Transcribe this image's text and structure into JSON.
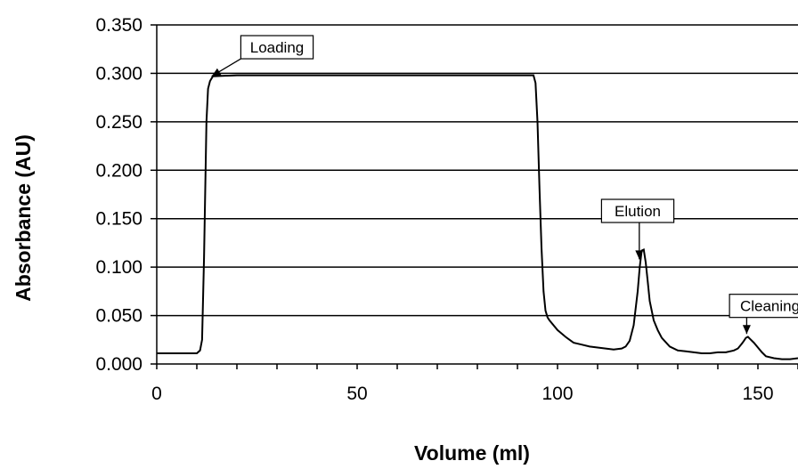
{
  "chart_data": {
    "type": "line",
    "xlabel": "Volume (ml)",
    "ylabel": "Absorbance (AU)",
    "xlim": [
      0,
      160
    ],
    "ylim": [
      0,
      0.35
    ],
    "x_ticks": [
      0,
      50,
      100,
      150
    ],
    "x_tick_labels": [
      "0",
      "50",
      "100",
      "150"
    ],
    "x_minor_step": 10,
    "y_ticks": [
      0,
      0.05,
      0.1,
      0.15,
      0.2,
      0.25,
      0.3,
      0.35
    ],
    "y_tick_labels": [
      "0.000",
      "0.050",
      "0.100",
      "0.150",
      "0.200",
      "0.250",
      "0.300",
      "0.350"
    ],
    "grid": "horizontal",
    "legend": "none",
    "line_color": "#000000",
    "series": [
      {
        "x": [
          0,
          10,
          10.8,
          11.3,
          11.8,
          12.4,
          12.8,
          13.3,
          14,
          20,
          40,
          60,
          80,
          92,
          94,
          94.5,
          95,
          95.5,
          96,
          96.5,
          97,
          97.5,
          98,
          100,
          102,
          104,
          106,
          108,
          110,
          112,
          114,
          116,
          117,
          118,
          119,
          120,
          120.5,
          121,
          121.5,
          122,
          122.5,
          123,
          124,
          125,
          126,
          128,
          130,
          132,
          134,
          136,
          138,
          140,
          142,
          144,
          145,
          146,
          146.5,
          147,
          147.5,
          148,
          149,
          150,
          151,
          152,
          154,
          156,
          158,
          160
        ],
        "y": [
          0.011,
          0.011,
          0.014,
          0.025,
          0.11,
          0.25,
          0.284,
          0.292,
          0.297,
          0.298,
          0.298,
          0.298,
          0.298,
          0.298,
          0.298,
          0.29,
          0.25,
          0.18,
          0.12,
          0.075,
          0.055,
          0.048,
          0.045,
          0.035,
          0.028,
          0.022,
          0.02,
          0.018,
          0.017,
          0.016,
          0.015,
          0.016,
          0.018,
          0.024,
          0.04,
          0.075,
          0.1,
          0.117,
          0.118,
          0.105,
          0.085,
          0.065,
          0.045,
          0.035,
          0.027,
          0.018,
          0.014,
          0.013,
          0.012,
          0.011,
          0.011,
          0.012,
          0.012,
          0.014,
          0.016,
          0.021,
          0.024,
          0.027,
          0.028,
          0.026,
          0.022,
          0.017,
          0.012,
          0.008,
          0.006,
          0.005,
          0.005,
          0.006
        ]
      }
    ],
    "annotations": [
      {
        "text": "Loading",
        "x": 30,
        "y": 0.327,
        "arrow_to": [
          13.7,
          0.297
        ]
      },
      {
        "text": "Elution",
        "x": 120,
        "y": 0.158,
        "arrow_to": [
          120.4,
          0.108
        ]
      },
      {
        "text": "Cleaning",
        "x": 153,
        "y": 0.06,
        "arrow_to": [
          147.2,
          0.031
        ]
      }
    ]
  }
}
